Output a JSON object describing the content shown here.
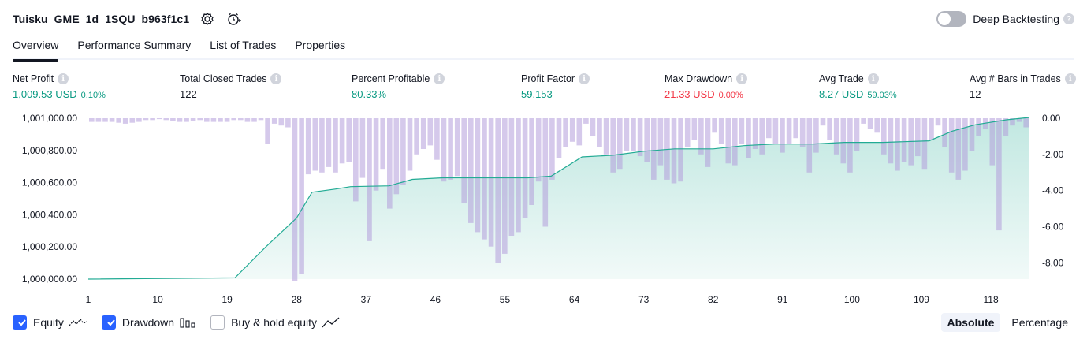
{
  "header": {
    "title": "Tuisku_GME_1d_1SQU_b963f1c1",
    "deep_backtesting_label": "Deep Backtesting",
    "help_glyph": "?"
  },
  "tabs": [
    {
      "label": "Overview",
      "active": true
    },
    {
      "label": "Performance Summary",
      "active": false
    },
    {
      "label": "List of Trades",
      "active": false
    },
    {
      "label": "Properties",
      "active": false
    }
  ],
  "info_glyph": "i",
  "stats": [
    {
      "label": "Net Profit",
      "value": "1,009.53 USD",
      "sub": "0.10%",
      "color": "green"
    },
    {
      "label": "Total Closed Trades",
      "value": "122",
      "sub": "",
      "color": "dark"
    },
    {
      "label": "Percent Profitable",
      "value": "80.33%",
      "sub": "",
      "color": "green"
    },
    {
      "label": "Profit Factor",
      "value": "59.153",
      "sub": "",
      "color": "green"
    },
    {
      "label": "Max Drawdown",
      "value": "21.33 USD",
      "sub": "0.00%",
      "color": "red"
    },
    {
      "label": "Avg Trade",
      "value": "8.27 USD",
      "sub": "59.03%",
      "color": "green"
    },
    {
      "label": "Avg # Bars in Trades",
      "value": "12",
      "sub": "",
      "color": "dark"
    }
  ],
  "legend": {
    "equity_label": "Equity",
    "equity_checked": true,
    "drawdown_label": "Drawdown",
    "drawdown_checked": true,
    "buyhold_label": "Buy & hold equity",
    "buyhold_checked": false
  },
  "modes": {
    "absolute": "Absolute",
    "percentage": "Percentage",
    "selected": "Absolute"
  },
  "chart_data": {
    "type": "line+bar",
    "x_ticks": [
      1,
      10,
      19,
      28,
      37,
      46,
      55,
      64,
      73,
      82,
      91,
      100,
      109,
      118
    ],
    "x_range": [
      1,
      123
    ],
    "y_left_ticks": [
      "1,000,000.00",
      "1,000,200.00",
      "1,000,400.00",
      "1,000,600.00",
      "1,000,800.00",
      "1,001,000.00"
    ],
    "y_left_range": [
      1000000,
      1001000
    ],
    "y_right_ticks": [
      "0.00",
      "-2.00",
      "-4.00",
      "-6.00",
      "-8.00"
    ],
    "y_right_range": [
      -8.9,
      0
    ],
    "colors": {
      "equity_line": "#22ab94",
      "equity_fill": "#d1f0e6",
      "drawdown_bar": "#b39ddb",
      "drawdown_bar_alpha": 0.55
    },
    "series": [
      {
        "name": "Equity",
        "kind": "line",
        "points": [
          [
            1,
            1000000
          ],
          [
            20,
            1000008
          ],
          [
            24,
            1000200
          ],
          [
            28,
            1000380
          ],
          [
            30,
            1000540
          ],
          [
            33,
            1000560
          ],
          [
            35,
            1000575
          ],
          [
            40,
            1000580
          ],
          [
            43,
            1000620
          ],
          [
            47,
            1000630
          ],
          [
            54,
            1000630
          ],
          [
            58,
            1000630
          ],
          [
            61,
            1000640
          ],
          [
            65,
            1000760
          ],
          [
            69,
            1000770
          ],
          [
            73,
            1000795
          ],
          [
            77,
            1000810
          ],
          [
            82,
            1000810
          ],
          [
            86,
            1000830
          ],
          [
            90,
            1000840
          ],
          [
            95,
            1000840
          ],
          [
            99,
            1000850
          ],
          [
            104,
            1000850
          ],
          [
            110,
            1000860
          ],
          [
            113,
            1000920
          ],
          [
            116,
            1000960
          ],
          [
            120,
            1000990
          ],
          [
            123,
            1001005
          ]
        ]
      },
      {
        "name": "Drawdown",
        "kind": "bar",
        "values": [
          -0.2,
          -0.2,
          -0.2,
          -0.2,
          -0.25,
          -0.3,
          -0.25,
          -0.2,
          -0.1,
          -0.1,
          -0.05,
          -0.1,
          -0.15,
          -0.2,
          -0.2,
          -0.15,
          -0.1,
          -0.2,
          -0.2,
          -0.2,
          -0.2,
          -0.1,
          -0.1,
          -0.2,
          -0.2,
          -0.1,
          -1.4,
          -0.3,
          -0.4,
          -0.5,
          -9.0,
          -8.6,
          -3.1,
          -2.9,
          -3.0,
          -2.7,
          -3.0,
          -2.5,
          -2.4,
          -4.6,
          -3.3,
          -6.8,
          -4.0,
          -2.8,
          -5.0,
          -4.2,
          -3.7,
          -2.9,
          -2.0,
          -1.7,
          -1.5,
          -2.3,
          -3.5,
          -3.4,
          -3.2,
          -4.7,
          -5.8,
          -6.3,
          -6.7,
          -7.1,
          -8.0,
          -7.5,
          -6.5,
          -6.3,
          -5.5,
          -4.8,
          -3.5,
          -6.0,
          -3.4,
          -2.2,
          -1.6,
          -1.3,
          -1.5,
          -0.3,
          -1.0,
          -1.6,
          -2.0,
          -3.0,
          -2.8,
          -1.8,
          -1.8,
          -2.1,
          -2.4,
          -3.4,
          -2.6,
          -3.4,
          -3.6,
          -3.5,
          -1.6,
          -1.2,
          -2.0,
          -2.7,
          -0.8,
          -1.4,
          -2.5,
          -2.6,
          -1.4,
          -2.2,
          -1.7,
          -2.0,
          -1.1,
          -1.4,
          -1.9,
          -1.4,
          -1.1,
          -1.6,
          -3.0,
          -1.9,
          -0.4,
          -1.2,
          -2.0,
          -2.5,
          -3.0,
          -1.8,
          -0.3,
          -0.6,
          -0.8,
          -2.0,
          -2.5,
          -2.9,
          -2.4,
          -2.6,
          -2.1,
          -2.8,
          -1.2,
          -0.4,
          -1.6,
          -3.0,
          -3.4,
          -2.9,
          -1.8,
          -1.0,
          -0.6,
          -2.6,
          -6.2,
          -1.0,
          -0.4,
          -0.2,
          -0.5
        ]
      }
    ]
  }
}
